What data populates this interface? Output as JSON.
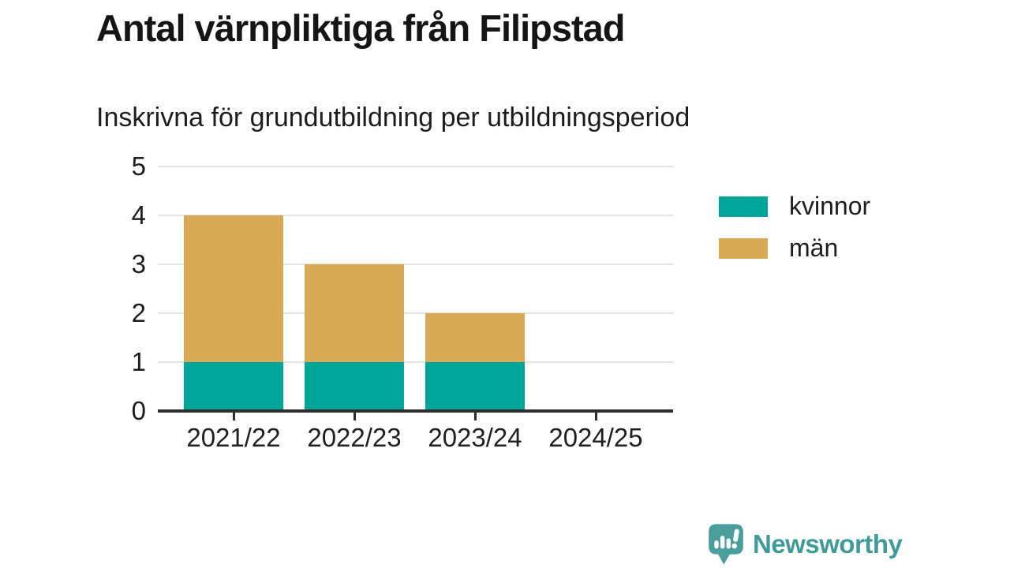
{
  "header": {
    "title": "Antal värnpliktiga från Filipstad",
    "subtitle": "Inskrivna för grundutbildning per utbildningsperiod"
  },
  "chart_data": {
    "type": "bar",
    "stacked": true,
    "categories": [
      "2021/22",
      "2022/23",
      "2023/24",
      "2024/25"
    ],
    "series": [
      {
        "name": "kvinnor",
        "color": "#00a59a",
        "values": [
          1,
          1,
          1,
          0
        ]
      },
      {
        "name": "män",
        "color": "#d9aa56",
        "values": [
          3,
          2,
          1,
          0
        ]
      }
    ],
    "title": "Antal värnpliktiga från Filipstad",
    "subtitle": "Inskrivna för grundutbildning per utbildningsperiod",
    "xlabel": "",
    "ylabel": "",
    "ylim": [
      0,
      5
    ],
    "ytick_step": 1,
    "grid": true,
    "legend_position": "right"
  },
  "footer": {
    "brand": "Newsworthy"
  },
  "colors": {
    "axis": "#2d2d2d",
    "grid": "#e4e4e4",
    "brand_teal": "#3f9b99",
    "logo_bubble": "#4a9e9d"
  }
}
